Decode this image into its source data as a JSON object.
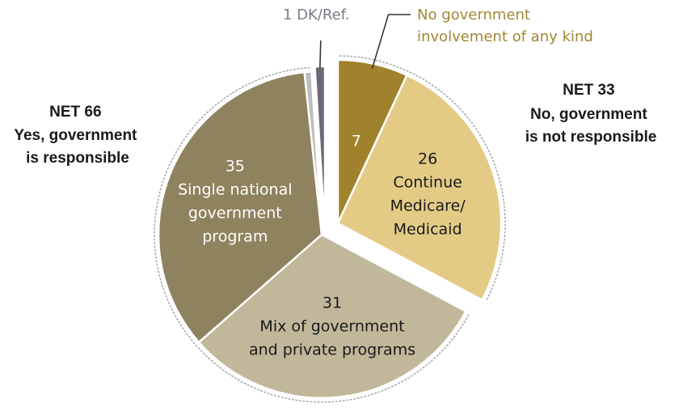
{
  "colors": {
    "no_involvement": "#a0822d",
    "continue_medicare": "#e3cb86",
    "single_program": "#8f835f",
    "mix_programs": "#c1b79a",
    "unlabeled_sliver": "#bcbcbc",
    "dk_ref": "#6d6778",
    "callout_gold": "#a38634",
    "callout_gray": "#7f7888",
    "outline": "#aaaaaa"
  },
  "chart_data": {
    "type": "pie",
    "title": "",
    "slices": [
      {
        "key": "no_involvement",
        "value": 7,
        "value_label": "7",
        "label_lines": [],
        "group": "no"
      },
      {
        "key": "continue_medicare",
        "value": 26,
        "value_label": "26",
        "label_lines": [
          "Continue",
          "Medicare/",
          "Medicaid"
        ],
        "group": "no"
      },
      {
        "key": "mix_programs",
        "value": 31,
        "value_label": "31",
        "label_lines": [
          "Mix of government",
          "and private programs"
        ],
        "group": "yes"
      },
      {
        "key": "single_program",
        "value": 35,
        "value_label": "35",
        "label_lines": [
          "Single national",
          "government",
          "program"
        ],
        "group": "yes"
      },
      {
        "key": "unlabeled_sliver",
        "value": 0.7,
        "value_label": "",
        "label_lines": [],
        "group": "yes"
      },
      {
        "key": "dk_ref",
        "value": 1,
        "value_label": "",
        "label_lines": [],
        "group": "dk"
      }
    ],
    "callouts": {
      "dk_ref": "1 DK/Ref.",
      "no_involvement": [
        "No government",
        "involvement of any kind"
      ]
    },
    "groups": {
      "no": {
        "net": "NET 33",
        "lines": [
          "No, government",
          "is not responsible"
        ]
      },
      "yes": {
        "net": "NET 66",
        "lines": [
          "Yes, government",
          "is responsible"
        ]
      }
    }
  }
}
